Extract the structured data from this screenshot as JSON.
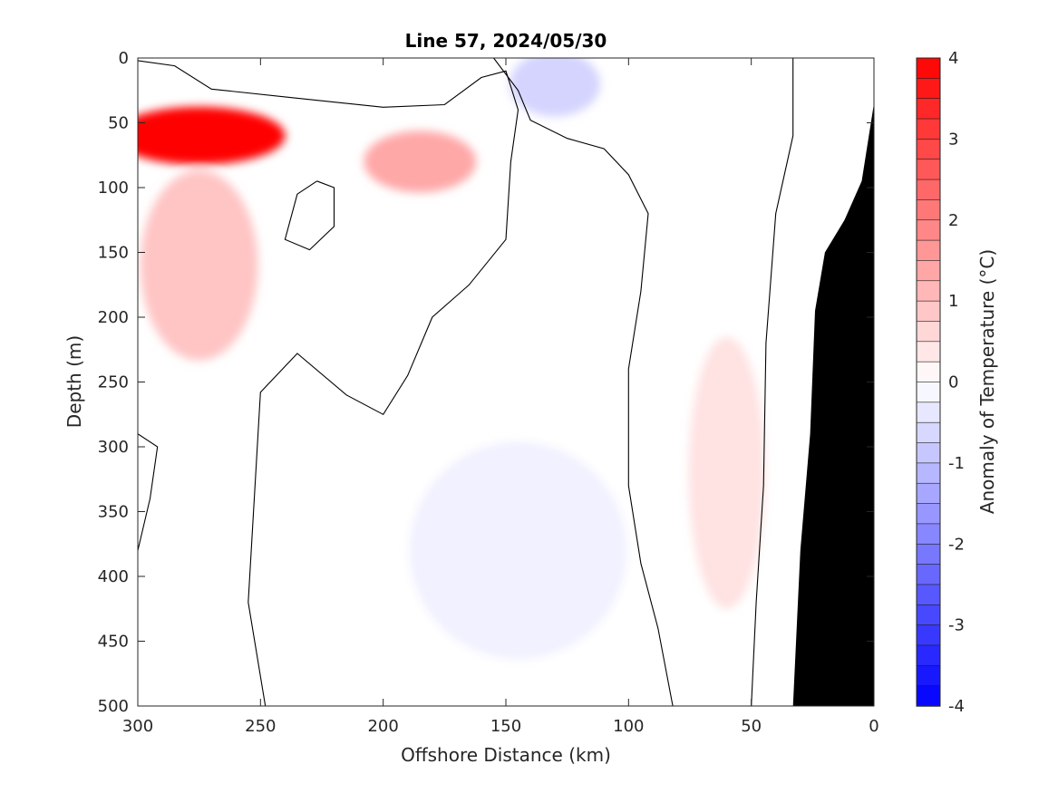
{
  "chart_data": {
    "type": "heatmap",
    "subtype": "filled-contour",
    "title": "Line 57, 2024/05/30",
    "xlabel": "Offshore Distance (km)",
    "ylabel": "Depth (m)",
    "xlim": [
      300,
      0
    ],
    "x_reversed": true,
    "ylim": [
      0,
      500
    ],
    "y_reversed": true,
    "x_ticks": [
      "300",
      "250",
      "200",
      "150",
      "100",
      "50",
      "0"
    ],
    "y_ticks": [
      "0",
      "50",
      "100",
      "150",
      "200",
      "250",
      "300",
      "350",
      "400",
      "450",
      "500"
    ],
    "colorbar": {
      "label": "Anomaly of Temperature (°C)",
      "min": -4,
      "max": 4,
      "step": 0.25,
      "ticks": [
        "4",
        "3",
        "2",
        "1",
        "0",
        "-1",
        "-2",
        "-3",
        "-4"
      ],
      "cold_color": "#0000ff",
      "neutral_color": "#ffffff",
      "warm_color": "#ff0000"
    },
    "zero_contour_shown": true,
    "bathymetry_color": "#000000",
    "features": [
      {
        "kind": "warm core",
        "x_km": 275,
        "depth_m": 60,
        "anomaly": 4.0
      },
      {
        "kind": "warm",
        "x_km": 185,
        "depth_m": 80,
        "anomaly": 1.5
      },
      {
        "kind": "warm",
        "x_km": 275,
        "depth_m": 160,
        "anomaly": 1.0
      },
      {
        "kind": "warm",
        "x_km": 60,
        "depth_m": 320,
        "anomaly": 0.5
      },
      {
        "kind": "cold",
        "x_km": 130,
        "depth_m": 20,
        "anomaly": -0.75
      },
      {
        "kind": "cold",
        "x_km": 145,
        "depth_m": 380,
        "anomaly": -0.25
      }
    ],
    "bathymetry": [
      {
        "x_km": 33,
        "depth_m": 500
      },
      {
        "x_km": 30,
        "depth_m": 380
      },
      {
        "x_km": 26,
        "depth_m": 290
      },
      {
        "x_km": 24,
        "depth_m": 195
      },
      {
        "x_km": 20,
        "depth_m": 150
      },
      {
        "x_km": 12,
        "depth_m": 125
      },
      {
        "x_km": 5,
        "depth_m": 95
      },
      {
        "x_km": 0,
        "depth_m": 35
      }
    ]
  }
}
